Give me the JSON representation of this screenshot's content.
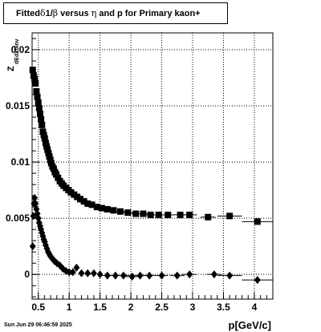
{
  "title_parts": {
    "a": "Fitted ",
    "delta": "δ",
    "b": " 1/",
    "beta": "β",
    "c": " versus ",
    "eta": "η",
    "d": " and p for Primary kaon+"
  },
  "timestamp": "Sun Jun 29 06:46:59 2025",
  "chart_data": {
    "type": "scatter",
    "title": "Fitted δ 1/β versus η and p for Primary kaon+",
    "xlabel": "p[GeV/c]",
    "ylabel_main": "Z",
    "ylabel_sub": "dEdxbinv",
    "xlim": [
      0.4,
      4.3
    ],
    "ylim": [
      -0.0022,
      0.0215
    ],
    "grid": true,
    "x_ticks": [
      {
        "v": 0.5,
        "label": "0.5"
      },
      {
        "v": 1,
        "label": "1"
      },
      {
        "v": 1.5,
        "label": "1.5"
      },
      {
        "v": 2,
        "label": "2"
      },
      {
        "v": 2.5,
        "label": "2.5"
      },
      {
        "v": 3,
        "label": "3"
      },
      {
        "v": 3.5,
        "label": "3.5"
      },
      {
        "v": 4,
        "label": "4"
      }
    ],
    "y_ticks": [
      {
        "v": 0,
        "label": "0"
      },
      {
        "v": 0.005,
        "label": "0.005"
      },
      {
        "v": 0.01,
        "label": "0.01"
      },
      {
        "v": 0.015,
        "label": "0.015"
      },
      {
        "v": 0.02,
        "label": "0.02"
      }
    ],
    "series": [
      {
        "marker": "square",
        "points": [
          [
            0.41,
            0.0182
          ],
          [
            0.425,
            0.0177
          ],
          [
            0.44,
            0.0174
          ],
          [
            0.455,
            0.017
          ],
          [
            0.47,
            0.0163
          ],
          [
            0.485,
            0.0158
          ],
          [
            0.5,
            0.0153
          ],
          [
            0.515,
            0.0148
          ],
          [
            0.53,
            0.0143
          ],
          [
            0.545,
            0.0138
          ],
          [
            0.56,
            0.0133
          ],
          [
            0.575,
            0.0127
          ],
          [
            0.59,
            0.0124
          ],
          [
            0.605,
            0.0121
          ],
          [
            0.62,
            0.0117
          ],
          [
            0.635,
            0.0114
          ],
          [
            0.65,
            0.0111
          ],
          [
            0.665,
            0.0108
          ],
          [
            0.68,
            0.0105
          ],
          [
            0.695,
            0.0102
          ],
          [
            0.71,
            0.0099
          ],
          [
            0.73,
            0.0096
          ],
          [
            0.75,
            0.0094
          ],
          [
            0.77,
            0.0091
          ],
          [
            0.79,
            0.0089
          ],
          [
            0.82,
            0.0086
          ],
          [
            0.85,
            0.0083
          ],
          [
            0.88,
            0.0081
          ],
          [
            0.91,
            0.0079
          ],
          [
            0.95,
            0.0077
          ],
          [
            0.99,
            0.0075
          ],
          [
            1.03,
            0.0073
          ],
          [
            1.08,
            0.0071
          ],
          [
            1.13,
            0.0069
          ],
          [
            1.18,
            0.0067
          ],
          [
            1.24,
            0.0065
          ],
          [
            1.3,
            0.0063
          ],
          [
            1.37,
            0.0062
          ],
          [
            1.45,
            0.006
          ],
          [
            1.53,
            0.0059
          ],
          [
            1.62,
            0.0058
          ],
          [
            1.72,
            0.0057
          ],
          [
            1.83,
            0.0056
          ],
          [
            1.95,
            0.0055
          ],
          [
            2.08,
            0.0054
          ],
          [
            2.2,
            0.0054
          ],
          [
            2.32,
            0.0053
          ],
          [
            2.45,
            0.0053
          ],
          [
            2.6,
            0.0053
          ],
          [
            2.8,
            0.0053
          ],
          [
            2.95,
            0.0053
          ],
          [
            3.25,
            0.0051
          ],
          [
            3.6,
            0.0052
          ],
          [
            4.05,
            0.0047
          ]
        ],
        "x_error_half": [
          0.08,
          0.08,
          0.1,
          0.1,
          0.1,
          0.1,
          0.1,
          0.12,
          0.12,
          0.12,
          0.2,
          0.25
        ]
      },
      {
        "marker": "diamond",
        "points": [
          [
            0.41,
            0.0025
          ],
          [
            0.42,
            0.0052
          ],
          [
            0.43,
            0.0063
          ],
          [
            0.44,
            0.0068
          ],
          [
            0.455,
            0.0063
          ],
          [
            0.47,
            0.0058
          ],
          [
            0.485,
            0.0054
          ],
          [
            0.5,
            0.005
          ],
          [
            0.515,
            0.0046
          ],
          [
            0.53,
            0.0043
          ],
          [
            0.545,
            0.004
          ],
          [
            0.56,
            0.0037
          ],
          [
            0.575,
            0.0034
          ],
          [
            0.59,
            0.0031
          ],
          [
            0.605,
            0.0029
          ],
          [
            0.62,
            0.0026
          ],
          [
            0.64,
            0.0023
          ],
          [
            0.66,
            0.002
          ],
          [
            0.68,
            0.0018
          ],
          [
            0.7,
            0.0016
          ],
          [
            0.73,
            0.0014
          ],
          [
            0.76,
            0.0012
          ],
          [
            0.8,
            0.001
          ],
          [
            0.85,
            0.0008
          ],
          [
            0.9,
            0.0005
          ],
          [
            0.95,
            0.0003
          ],
          [
            1.0,
            0.0002
          ],
          [
            1.06,
            0.0002
          ],
          [
            1.12,
            0.0006
          ],
          [
            1.2,
            0.0001
          ],
          [
            1.3,
            0.0001
          ],
          [
            1.4,
            0.0001
          ],
          [
            1.5,
            0.0
          ],
          [
            1.62,
            -0.0001
          ],
          [
            1.75,
            -0.0001
          ],
          [
            1.88,
            -0.0001
          ],
          [
            2.02,
            -0.0002
          ],
          [
            2.15,
            -0.0001
          ],
          [
            2.3,
            -0.0001
          ],
          [
            2.5,
            -0.0001
          ],
          [
            2.75,
            -0.0001
          ],
          [
            2.95,
            0.0
          ],
          [
            3.35,
            0.0
          ],
          [
            3.6,
            -0.0001
          ],
          [
            4.05,
            -0.0005
          ]
        ]
      }
    ]
  }
}
